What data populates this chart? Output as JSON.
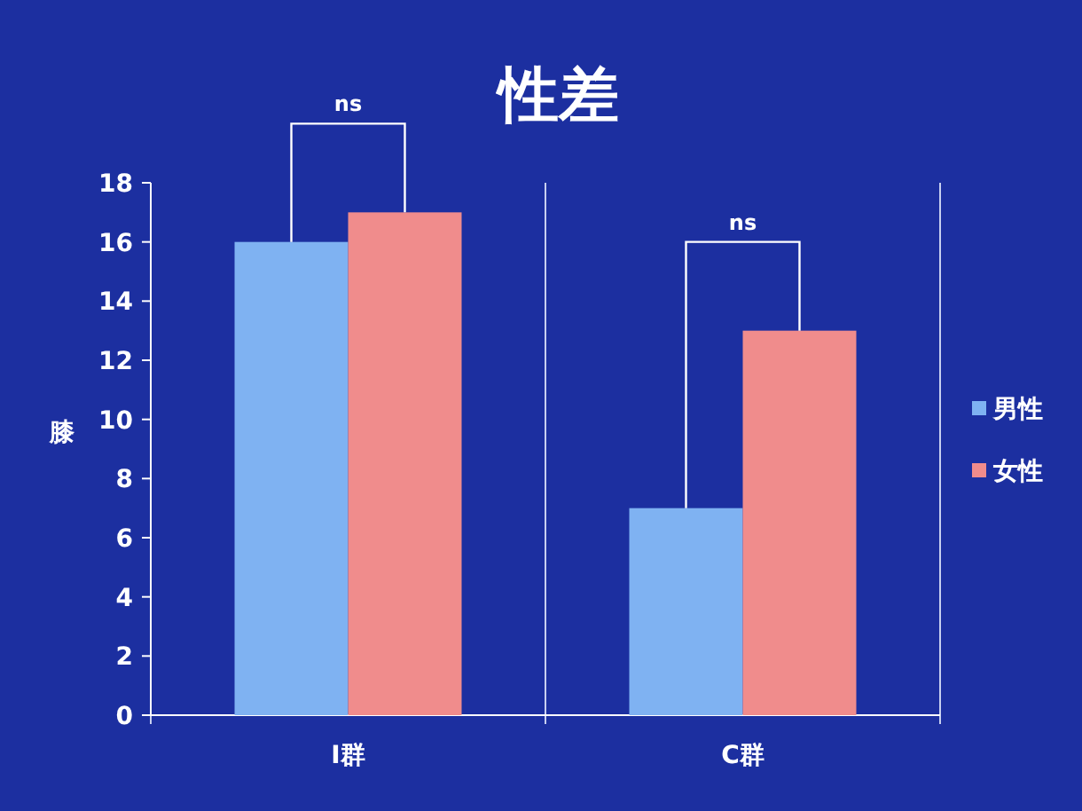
{
  "chart_data": {
    "type": "bar",
    "title": "性差",
    "ylabel": "膝",
    "categories": [
      "I群",
      "C群"
    ],
    "series": [
      {
        "name": "男性",
        "color": "#7fb2f2",
        "values": [
          16,
          7
        ]
      },
      {
        "name": "女性",
        "color": "#f08c8c",
        "values": [
          17,
          13
        ]
      }
    ],
    "ylim": [
      0,
      18
    ],
    "yticks": [
      0,
      2,
      4,
      6,
      8,
      10,
      12,
      14,
      16,
      18
    ],
    "grid": "x",
    "legend": "right",
    "annotations": [
      "ns",
      "ns"
    ]
  }
}
